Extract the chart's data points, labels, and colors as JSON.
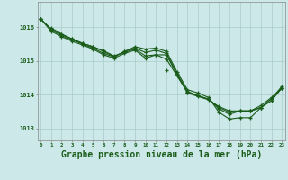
{
  "background_color": "#cce8e8",
  "grid_color": "#aacccc",
  "line_color": "#1a5c1a",
  "xlabel": "Graphe pression niveau de la mer (hPa)",
  "xlabel_fontsize": 7,
  "ylim": [
    1012.65,
    1016.75
  ],
  "xlim": [
    -0.3,
    23.3
  ],
  "yticks": [
    1013,
    1014,
    1015,
    1016
  ],
  "line1": [
    1016.25,
    1015.95,
    1015.78,
    1015.65,
    1015.52,
    1015.42,
    1015.3,
    1015.15,
    1015.25,
    1015.35,
    1015.15,
    1015.18,
    1015.18,
    1014.6,
    1014.05,
    1013.95,
    1013.85,
    1013.65,
    1013.52,
    1013.52,
    1013.52,
    1013.62,
    1013.82,
    1014.2
  ],
  "line2": [
    1016.25,
    1015.88,
    1015.72,
    1015.58,
    1015.47,
    1015.35,
    1015.18,
    1015.08,
    1015.22,
    1015.32,
    1015.08,
    1015.18,
    1015.05,
    1014.56,
    1014.07,
    1013.97,
    1013.87,
    1013.58,
    1013.42,
    1013.52,
    1013.52,
    1013.68,
    1013.92,
    1014.2
  ],
  "line3": [
    1016.25,
    null,
    null,
    null,
    null,
    null,
    null,
    null,
    null,
    null,
    null,
    null,
    1014.72,
    null,
    null,
    null,
    null,
    null,
    null,
    null,
    null,
    null,
    null,
    1014.2
  ],
  "line4": [
    1016.25,
    1015.92,
    1015.75,
    1015.62,
    1015.5,
    1015.38,
    1015.22,
    1015.12,
    1015.28,
    1015.38,
    1015.25,
    1015.32,
    1015.22,
    1014.62,
    1014.1,
    1013.97,
    1013.87,
    1013.62,
    1013.48,
    1013.52,
    1013.52,
    1013.62,
    1013.88,
    1014.2
  ],
  "line5": [
    null,
    1015.98,
    1015.8,
    1015.65,
    1015.52,
    1015.42,
    1015.28,
    1015.12,
    1015.28,
    1015.42,
    1015.35,
    1015.38,
    1015.28,
    1014.68,
    1014.15,
    1014.05,
    1013.92,
    1013.48,
    1013.28,
    1013.32,
    1013.32,
    1013.62,
    1013.88,
    1014.25
  ]
}
